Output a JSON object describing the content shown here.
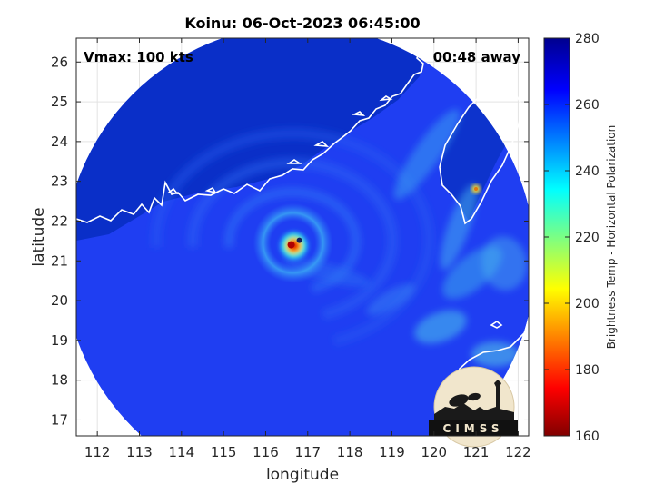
{
  "chart_data": {
    "type": "heatmap",
    "title": "Koinu: 06-Oct-2023 06:45:00",
    "xlabel": "longitude",
    "ylabel": "latitude",
    "xlim": [
      111.5,
      122.25
    ],
    "ylim": [
      16.6,
      26.6
    ],
    "xticks": [
      112,
      113,
      114,
      115,
      116,
      117,
      118,
      119,
      120,
      121,
      122
    ],
    "yticks": [
      17,
      18,
      19,
      20,
      21,
      22,
      23,
      24,
      25,
      26
    ],
    "grid": true,
    "annotations": {
      "vmax": "Vmax: 100 kts",
      "away": "00:48 away"
    },
    "colorbar": {
      "label": "Brightness Temp - Horizontal Polarization",
      "min": 160,
      "max": 280,
      "ticks": [
        160,
        180,
        200,
        220,
        240,
        260,
        280
      ],
      "colormap": [
        "#800000",
        "#ff0000",
        "#ffff00",
        "#00ffff",
        "#0000ff",
        "#00008f"
      ]
    },
    "swath": {
      "center_lon": 116.8,
      "center_lat": 21.0,
      "radius_deg": 5.6
    },
    "storm_center": {
      "lon": 116.65,
      "lat": 21.45,
      "min_temp": 175
    },
    "logo": "CIMSS"
  },
  "colors": {
    "ocean": "#1f3ef2",
    "land": "#0a2fc8",
    "coast": "#ffffff",
    "axis": "#262626"
  }
}
